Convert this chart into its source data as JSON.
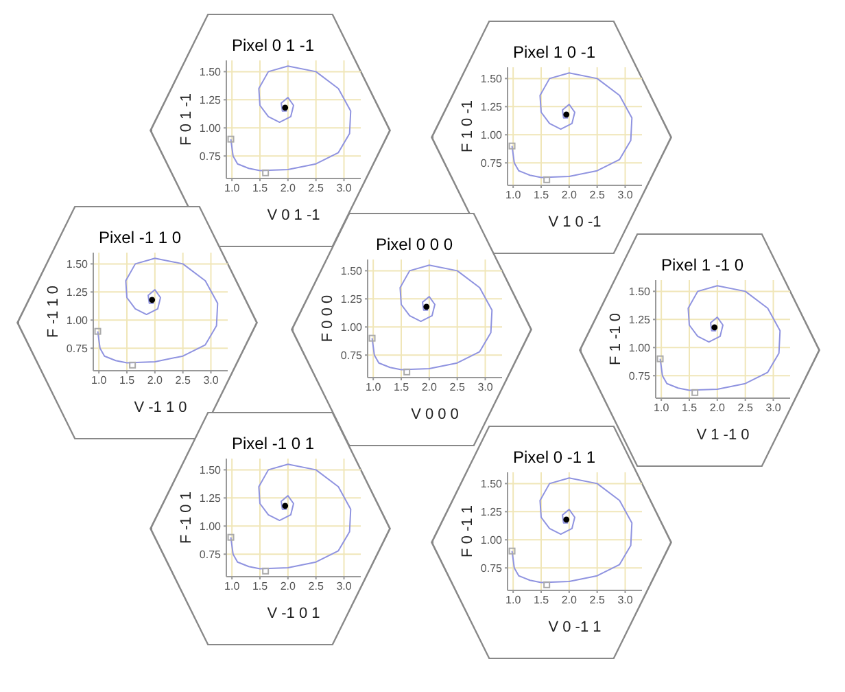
{
  "chart_data": [
    {
      "type": "line",
      "title": "Pixel 0 1 -1",
      "xlabel": "V 0 1 -1",
      "ylabel": "F 0 1 -1",
      "xlim": [
        0.9,
        3.3
      ],
      "ylim": [
        0.55,
        1.6
      ],
      "xticks": [
        {
          "value": 1,
          "label": "1.0"
        },
        {
          "value": 1.5,
          "label": "1.5"
        },
        {
          "value": 2,
          "label": "2.0"
        },
        {
          "value": 2.5,
          "label": "2.5"
        },
        {
          "value": 3,
          "label": "3.0"
        }
      ],
      "yticks": [
        {
          "value": 0.75,
          "label": "0.75"
        },
        {
          "value": 1,
          "label": "1.00"
        },
        {
          "value": 1.25,
          "label": "1.25"
        },
        {
          "value": 1.5,
          "label": "1.50"
        }
      ],
      "grid": true,
      "series": [
        {
          "type": "line",
          "color": "#8f93e0",
          "x": [
            0.98,
            1.02,
            1.1,
            1.3,
            1.5,
            2.0,
            2.5,
            2.9,
            3.1,
            3.12,
            2.9,
            2.5,
            2.0,
            1.65,
            1.48,
            1.5,
            1.65,
            1.85,
            2.05,
            2.1,
            2.0,
            1.88,
            1.9,
            1.97,
            1.95
          ],
          "values": [
            0.9,
            0.75,
            0.68,
            0.64,
            0.62,
            0.63,
            0.68,
            0.78,
            0.95,
            1.15,
            1.35,
            1.5,
            1.55,
            1.5,
            1.35,
            1.2,
            1.1,
            1.05,
            1.1,
            1.2,
            1.27,
            1.22,
            1.15,
            1.15,
            1.18
          ]
        },
        {
          "type": "scatter",
          "color": "#000000",
          "marker": "circle",
          "x": [
            1.95
          ],
          "values": [
            1.18
          ]
        },
        {
          "type": "scatter",
          "color": "#aaaaaa",
          "marker": "square",
          "x": [
            0.98,
            1.6
          ],
          "values": [
            0.9,
            0.6
          ]
        }
      ]
    },
    {
      "type": "line",
      "title": "Pixel 1 0 -1",
      "xlabel": "V 1 0 -1",
      "ylabel": "F 1 0 -1",
      "xlim": [
        0.9,
        3.3
      ],
      "ylim": [
        0.55,
        1.6
      ],
      "xticks": [
        {
          "value": 1,
          "label": "1.0"
        },
        {
          "value": 1.5,
          "label": "1.5"
        },
        {
          "value": 2,
          "label": "2.0"
        },
        {
          "value": 2.5,
          "label": "2.5"
        },
        {
          "value": 3,
          "label": "3.0"
        }
      ],
      "yticks": [
        {
          "value": 0.75,
          "label": "0.75"
        },
        {
          "value": 1,
          "label": "1.00"
        },
        {
          "value": 1.25,
          "label": "1.25"
        },
        {
          "value": 1.5,
          "label": "1.50"
        }
      ],
      "grid": true,
      "series": [
        {
          "type": "line",
          "color": "#8f93e0",
          "x": [
            0.98,
            1.02,
            1.1,
            1.3,
            1.5,
            2.0,
            2.5,
            2.9,
            3.1,
            3.12,
            2.9,
            2.5,
            2.0,
            1.65,
            1.48,
            1.5,
            1.65,
            1.85,
            2.05,
            2.1,
            2.0,
            1.88,
            1.9,
            1.97,
            1.95
          ],
          "values": [
            0.9,
            0.75,
            0.68,
            0.64,
            0.62,
            0.63,
            0.68,
            0.78,
            0.95,
            1.15,
            1.35,
            1.5,
            1.55,
            1.5,
            1.35,
            1.2,
            1.1,
            1.05,
            1.1,
            1.2,
            1.27,
            1.22,
            1.15,
            1.15,
            1.18
          ]
        },
        {
          "type": "scatter",
          "color": "#000000",
          "marker": "circle",
          "x": [
            1.95
          ],
          "values": [
            1.18
          ]
        },
        {
          "type": "scatter",
          "color": "#aaaaaa",
          "marker": "square",
          "x": [
            0.98,
            1.6
          ],
          "values": [
            0.9,
            0.6
          ]
        }
      ]
    },
    {
      "type": "line",
      "title": "Pixel -1 1 0",
      "xlabel": "V -1 1 0",
      "ylabel": "F -1 1 0",
      "xlim": [
        0.9,
        3.3
      ],
      "ylim": [
        0.55,
        1.6
      ],
      "xticks": [
        {
          "value": 1,
          "label": "1.0"
        },
        {
          "value": 1.5,
          "label": "1.5"
        },
        {
          "value": 2,
          "label": "2.0"
        },
        {
          "value": 2.5,
          "label": "2.5"
        },
        {
          "value": 3,
          "label": "3.0"
        }
      ],
      "yticks": [
        {
          "value": 0.75,
          "label": "0.75"
        },
        {
          "value": 1,
          "label": "1.00"
        },
        {
          "value": 1.25,
          "label": "1.25"
        },
        {
          "value": 1.5,
          "label": "1.50"
        }
      ],
      "grid": true,
      "series": [
        {
          "type": "line",
          "color": "#8f93e0",
          "x": [
            0.98,
            1.02,
            1.1,
            1.3,
            1.5,
            2.0,
            2.5,
            2.9,
            3.1,
            3.12,
            2.9,
            2.5,
            2.0,
            1.65,
            1.48,
            1.5,
            1.65,
            1.85,
            2.05,
            2.1,
            2.0,
            1.88,
            1.9,
            1.97,
            1.95
          ],
          "values": [
            0.9,
            0.75,
            0.68,
            0.64,
            0.62,
            0.63,
            0.68,
            0.78,
            0.95,
            1.15,
            1.35,
            1.5,
            1.55,
            1.5,
            1.35,
            1.2,
            1.1,
            1.05,
            1.1,
            1.2,
            1.27,
            1.22,
            1.15,
            1.15,
            1.18
          ]
        },
        {
          "type": "scatter",
          "color": "#000000",
          "marker": "circle",
          "x": [
            1.95
          ],
          "values": [
            1.18
          ]
        },
        {
          "type": "scatter",
          "color": "#aaaaaa",
          "marker": "square",
          "x": [
            0.98,
            1.6
          ],
          "values": [
            0.9,
            0.6
          ]
        }
      ]
    },
    {
      "type": "line",
      "title": "Pixel 0 0 0",
      "xlabel": "V 0 0 0",
      "ylabel": "F 0 0 0",
      "xlim": [
        0.9,
        3.3
      ],
      "ylim": [
        0.55,
        1.6
      ],
      "xticks": [
        {
          "value": 1,
          "label": "1.0"
        },
        {
          "value": 1.5,
          "label": "1.5"
        },
        {
          "value": 2,
          "label": "2.0"
        },
        {
          "value": 2.5,
          "label": "2.5"
        },
        {
          "value": 3,
          "label": "3.0"
        }
      ],
      "yticks": [
        {
          "value": 0.75,
          "label": "0.75"
        },
        {
          "value": 1,
          "label": "1.00"
        },
        {
          "value": 1.25,
          "label": "1.25"
        },
        {
          "value": 1.5,
          "label": "1.50"
        }
      ],
      "grid": true,
      "series": [
        {
          "type": "line",
          "color": "#8f93e0",
          "x": [
            0.98,
            1.02,
            1.1,
            1.3,
            1.5,
            2.0,
            2.5,
            2.9,
            3.1,
            3.12,
            2.9,
            2.5,
            2.0,
            1.65,
            1.48,
            1.5,
            1.65,
            1.85,
            2.05,
            2.1,
            2.0,
            1.88,
            1.9,
            1.97,
            1.95
          ],
          "values": [
            0.9,
            0.75,
            0.68,
            0.64,
            0.62,
            0.63,
            0.68,
            0.78,
            0.95,
            1.15,
            1.35,
            1.5,
            1.55,
            1.5,
            1.35,
            1.2,
            1.1,
            1.05,
            1.1,
            1.2,
            1.27,
            1.22,
            1.15,
            1.15,
            1.18
          ]
        },
        {
          "type": "scatter",
          "color": "#000000",
          "marker": "circle",
          "x": [
            1.95
          ],
          "values": [
            1.18
          ]
        },
        {
          "type": "scatter",
          "color": "#aaaaaa",
          "marker": "square",
          "x": [
            0.98,
            1.6
          ],
          "values": [
            0.9,
            0.6
          ]
        }
      ]
    },
    {
      "type": "line",
      "title": "Pixel 1 -1 0",
      "xlabel": "V 1 -1 0",
      "ylabel": "F 1 -1 0",
      "xlim": [
        0.9,
        3.3
      ],
      "ylim": [
        0.55,
        1.6
      ],
      "xticks": [
        {
          "value": 1,
          "label": "1.0"
        },
        {
          "value": 1.5,
          "label": "1.5"
        },
        {
          "value": 2,
          "label": "2.0"
        },
        {
          "value": 2.5,
          "label": "2.5"
        },
        {
          "value": 3,
          "label": "3.0"
        }
      ],
      "yticks": [
        {
          "value": 0.75,
          "label": "0.75"
        },
        {
          "value": 1,
          "label": "1.00"
        },
        {
          "value": 1.25,
          "label": "1.25"
        },
        {
          "value": 1.5,
          "label": "1.50"
        }
      ],
      "grid": true,
      "series": [
        {
          "type": "line",
          "color": "#8f93e0",
          "x": [
            0.98,
            1.02,
            1.1,
            1.3,
            1.5,
            2.0,
            2.5,
            2.9,
            3.1,
            3.12,
            2.9,
            2.5,
            2.0,
            1.65,
            1.48,
            1.5,
            1.65,
            1.85,
            2.05,
            2.1,
            2.0,
            1.88,
            1.9,
            1.97,
            1.95
          ],
          "values": [
            0.9,
            0.75,
            0.68,
            0.64,
            0.62,
            0.63,
            0.68,
            0.78,
            0.95,
            1.15,
            1.35,
            1.5,
            1.55,
            1.5,
            1.35,
            1.2,
            1.1,
            1.05,
            1.1,
            1.2,
            1.27,
            1.22,
            1.15,
            1.15,
            1.18
          ]
        },
        {
          "type": "scatter",
          "color": "#000000",
          "marker": "circle",
          "x": [
            1.95
          ],
          "values": [
            1.18
          ]
        },
        {
          "type": "scatter",
          "color": "#aaaaaa",
          "marker": "square",
          "x": [
            0.98,
            1.6
          ],
          "values": [
            0.9,
            0.6
          ]
        }
      ]
    },
    {
      "type": "line",
      "title": "Pixel -1 0 1",
      "xlabel": "V -1 0 1",
      "ylabel": "F -1 0 1",
      "xlim": [
        0.9,
        3.3
      ],
      "ylim": [
        0.55,
        1.6
      ],
      "xticks": [
        {
          "value": 1,
          "label": "1.0"
        },
        {
          "value": 1.5,
          "label": "1.5"
        },
        {
          "value": 2,
          "label": "2.0"
        },
        {
          "value": 2.5,
          "label": "2.5"
        },
        {
          "value": 3,
          "label": "3.0"
        }
      ],
      "yticks": [
        {
          "value": 0.75,
          "label": "0.75"
        },
        {
          "value": 1,
          "label": "1.00"
        },
        {
          "value": 1.25,
          "label": "1.25"
        },
        {
          "value": 1.5,
          "label": "1.50"
        }
      ],
      "grid": true,
      "series": [
        {
          "type": "line",
          "color": "#8f93e0",
          "x": [
            0.98,
            1.02,
            1.1,
            1.3,
            1.5,
            2.0,
            2.5,
            2.9,
            3.1,
            3.12,
            2.9,
            2.5,
            2.0,
            1.65,
            1.48,
            1.5,
            1.65,
            1.85,
            2.05,
            2.1,
            2.0,
            1.88,
            1.9,
            1.97,
            1.95
          ],
          "values": [
            0.9,
            0.75,
            0.68,
            0.64,
            0.62,
            0.63,
            0.68,
            0.78,
            0.95,
            1.15,
            1.35,
            1.5,
            1.55,
            1.5,
            1.35,
            1.2,
            1.1,
            1.05,
            1.1,
            1.2,
            1.27,
            1.22,
            1.15,
            1.15,
            1.18
          ]
        },
        {
          "type": "scatter",
          "color": "#000000",
          "marker": "circle",
          "x": [
            1.95
          ],
          "values": [
            1.18
          ]
        },
        {
          "type": "scatter",
          "color": "#aaaaaa",
          "marker": "square",
          "x": [
            0.98,
            1.6
          ],
          "values": [
            0.9,
            0.6
          ]
        }
      ]
    },
    {
      "type": "line",
      "title": "Pixel 0 -1 1",
      "xlabel": "V 0 -1 1",
      "ylabel": "F 0 -1 1",
      "xlim": [
        0.9,
        3.3
      ],
      "ylim": [
        0.55,
        1.6
      ],
      "xticks": [
        {
          "value": 1,
          "label": "1.0"
        },
        {
          "value": 1.5,
          "label": "1.5"
        },
        {
          "value": 2,
          "label": "2.0"
        },
        {
          "value": 2.5,
          "label": "2.5"
        },
        {
          "value": 3,
          "label": "3.0"
        }
      ],
      "yticks": [
        {
          "value": 0.75,
          "label": "0.75"
        },
        {
          "value": 1,
          "label": "1.00"
        },
        {
          "value": 1.25,
          "label": "1.25"
        },
        {
          "value": 1.5,
          "label": "1.50"
        }
      ],
      "grid": true,
      "series": [
        {
          "type": "line",
          "color": "#8f93e0",
          "x": [
            0.98,
            1.02,
            1.1,
            1.3,
            1.5,
            2.0,
            2.5,
            2.9,
            3.1,
            3.12,
            2.9,
            2.5,
            2.0,
            1.65,
            1.48,
            1.5,
            1.65,
            1.85,
            2.05,
            2.1,
            2.0,
            1.88,
            1.9,
            1.97,
            1.95
          ],
          "values": [
            0.9,
            0.75,
            0.68,
            0.64,
            0.62,
            0.63,
            0.68,
            0.78,
            0.95,
            1.15,
            1.35,
            1.5,
            1.55,
            1.5,
            1.35,
            1.2,
            1.1,
            1.05,
            1.1,
            1.2,
            1.27,
            1.22,
            1.15,
            1.15,
            1.18
          ]
        },
        {
          "type": "scatter",
          "color": "#000000",
          "marker": "circle",
          "x": [
            1.95
          ],
          "values": [
            1.18
          ]
        },
        {
          "type": "scatter",
          "color": "#aaaaaa",
          "marker": "square",
          "x": [
            0.98,
            1.6
          ],
          "values": [
            0.9,
            0.6
          ]
        }
      ]
    }
  ]
}
